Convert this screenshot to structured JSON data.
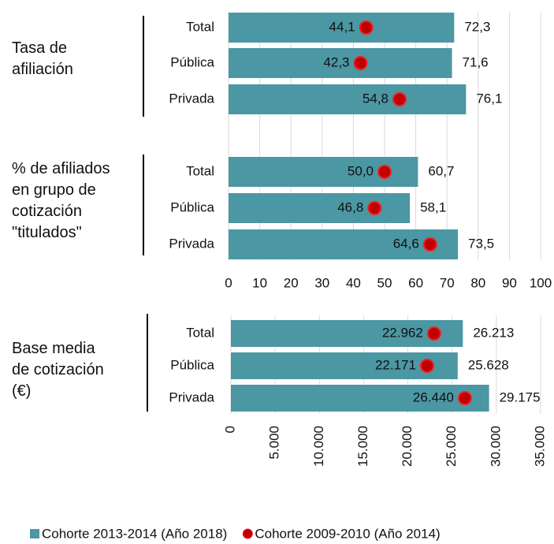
{
  "chart_data": [
    {
      "type": "bar",
      "orientation": "horizontal",
      "groups": [
        "Tasa de\nafiliación",
        "% de afiliados\nen grupo de\ncotización\n\"titulados\""
      ],
      "categories": [
        "Total",
        "Pública",
        "Privada",
        "Total",
        "Pública",
        "Privada"
      ],
      "series": [
        {
          "name": "Cohorte 2013-2014 (Año 2018)",
          "color": "#4b97a3",
          "marker": "bar",
          "values": [
            72.3,
            71.6,
            76.1,
            60.7,
            58.1,
            73.5
          ],
          "value_labels": [
            "72,3",
            "71,6",
            "76,1",
            "60,7",
            "58,1",
            "73,5"
          ]
        },
        {
          "name": "Cohorte 2009-2010 (Año 2014)",
          "color": "#c00000",
          "marker": "dot",
          "values": [
            44.1,
            42.3,
            54.8,
            50.0,
            46.8,
            64.6
          ],
          "value_labels": [
            "44,1",
            "42,3",
            "54,8",
            "50,0",
            "46,8",
            "64,6"
          ]
        }
      ],
      "xlim": [
        0,
        100
      ],
      "xticks": [
        0,
        10,
        20,
        30,
        40,
        50,
        60,
        70,
        80,
        90,
        100
      ],
      "grid": true
    },
    {
      "type": "bar",
      "orientation": "horizontal",
      "groups": [
        "Base media\nde cotización\n(€)"
      ],
      "categories": [
        "Total",
        "Pública",
        "Privada"
      ],
      "series": [
        {
          "color": "#4b97a3",
          "marker": "bar",
          "values": [
            26213,
            25628,
            29175
          ],
          "value_labels": [
            "26.213",
            "25.628",
            "29.175"
          ]
        },
        {
          "color": "#c00000",
          "marker": "dot",
          "values": [
            22962,
            22171,
            26440
          ],
          "value_labels": [
            "22.962",
            "22.171",
            "26.440"
          ]
        }
      ],
      "xlim": [
        0,
        35000
      ],
      "xticks": [
        0,
        {
          "value": 5000,
          "label": "5.000"
        },
        {
          "value": 10000,
          "label": "10.000"
        },
        {
          "value": 15000,
          "label": "15.000"
        },
        {
          "value": 20000,
          "label": "20.000"
        },
        {
          "value": 25000,
          "label": "25.000"
        },
        {
          "value": 30000,
          "label": "30.000"
        },
        {
          "value": 35000,
          "label": "35.000"
        }
      ],
      "grid": true
    }
  ]
}
